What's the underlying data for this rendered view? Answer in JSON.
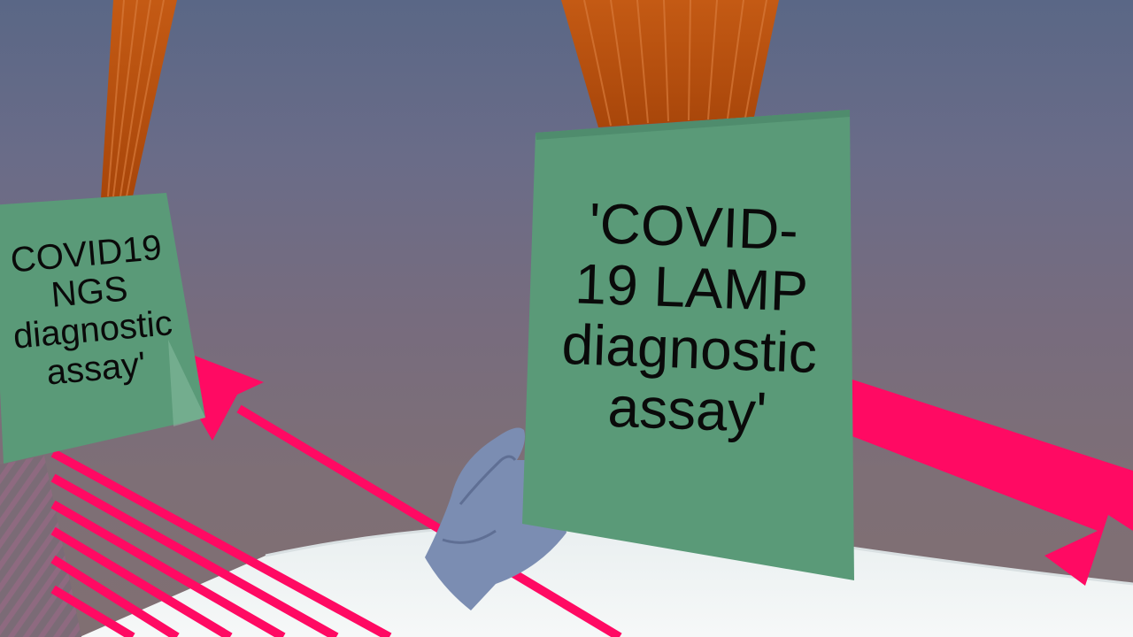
{
  "cards": {
    "main": {
      "label": "'COVID-\n19 LAMP\ndiagnostic\nassay'"
    },
    "left": {
      "label": "COVID19\nNGS\ndiagnostic\nassay'"
    }
  },
  "colors": {
    "card_green": "#5a9a78",
    "card_green_dark": "#4f8c6d",
    "beam_orange": "#b8500e",
    "arrow_pink": "#ff0a63",
    "floor_white": "#eef3f3",
    "hand_blue": "#7b8db2"
  }
}
